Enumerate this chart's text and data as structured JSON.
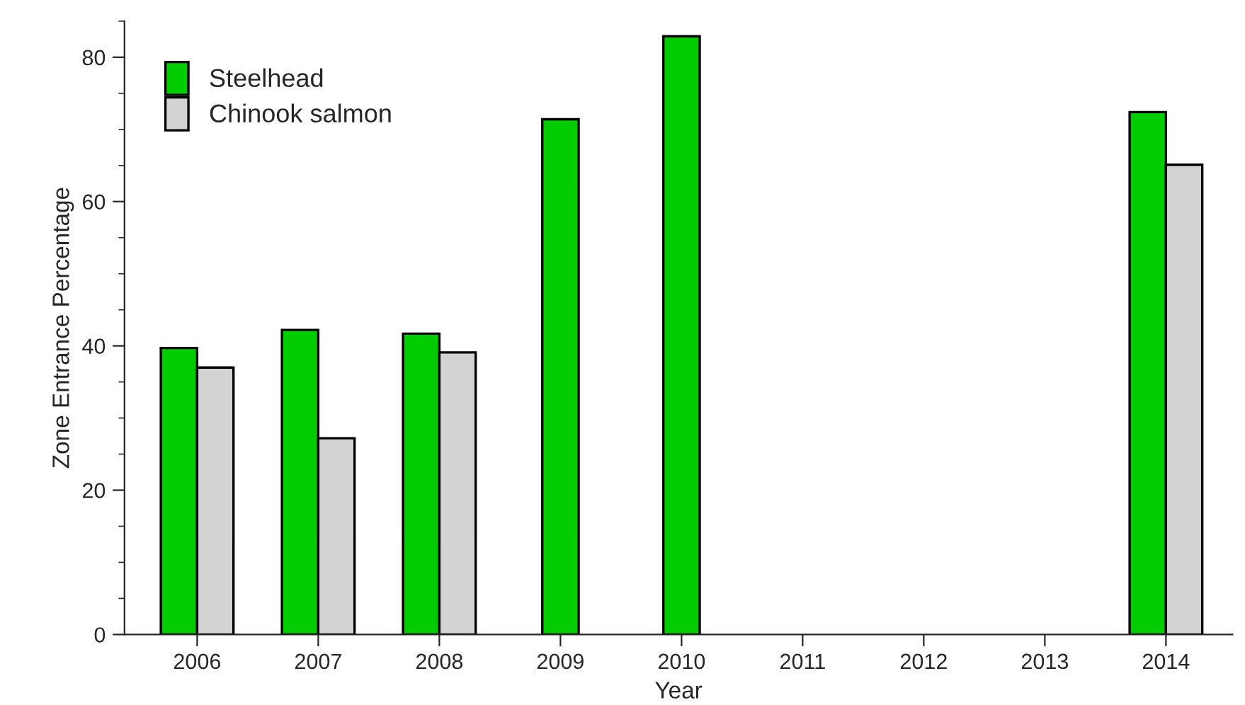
{
  "chart_data": {
    "type": "bar",
    "xlabel": "Year",
    "ylabel": "Zone Entrance Percentage",
    "categories": [
      "2006",
      "2007",
      "2008",
      "2009",
      "2010",
      "2011",
      "2012",
      "2013",
      "2014"
    ],
    "series": [
      {
        "name": "Steelhead",
        "color": "#00cc00",
        "values": [
          39.7,
          42.2,
          41.7,
          71.4,
          82.9,
          null,
          null,
          null,
          72.4
        ]
      },
      {
        "name": "Chinook salmon",
        "color": "#d3d3d3",
        "values": [
          37.0,
          27.2,
          39.1,
          null,
          null,
          null,
          null,
          null,
          65.1
        ]
      }
    ],
    "ylim": [
      0,
      85
    ],
    "yticks": [
      0,
      20,
      40,
      60,
      80
    ],
    "grid": false,
    "legend": "top left"
  }
}
